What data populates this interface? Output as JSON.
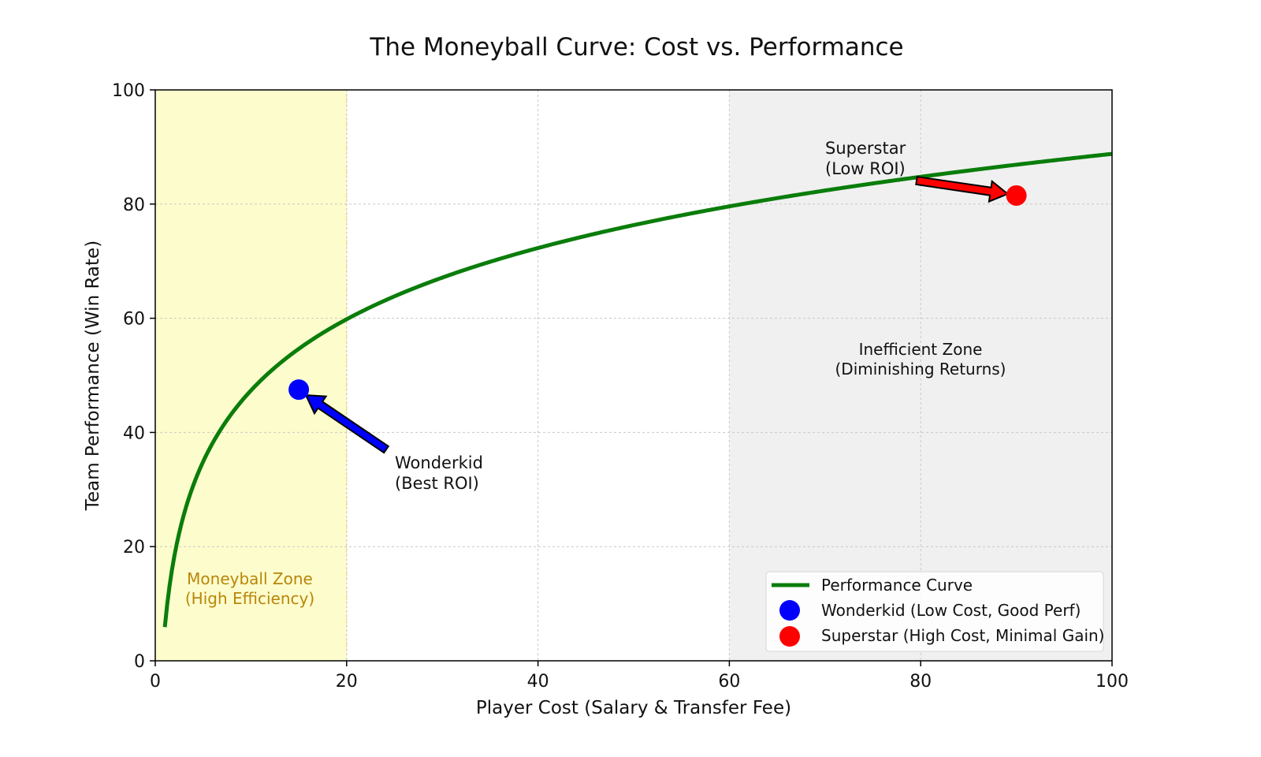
{
  "chart_data": {
    "type": "line",
    "title": "The Moneyball Curve: Cost vs. Performance",
    "xlabel": "Player Cost (Salary & Transfer Fee)",
    "ylabel": "Team Performance (Win Rate)",
    "xlim": [
      0,
      100
    ],
    "ylim": [
      0,
      100
    ],
    "xticks": [
      0,
      20,
      40,
      60,
      80,
      100
    ],
    "yticks": [
      0,
      20,
      40,
      60,
      80,
      100
    ],
    "grid": true,
    "legend_position": "lower-right",
    "colors": {
      "curve": "#0a7d0a",
      "wonderkid": "#0000ff",
      "superstar": "#ff0000",
      "moneyball_zone": "#fdfccc",
      "moneyball_text": "#b8860b",
      "inefficient_zone": "#f0f0f0",
      "grid": "#c8c8c8"
    },
    "series": [
      {
        "name": "Performance Curve",
        "function": "y = 18 * ln(x) + 5.9",
        "x_range": [
          1,
          100
        ],
        "points": [
          [
            1,
            5.9
          ],
          [
            5,
            34.9
          ],
          [
            10,
            47.3
          ],
          [
            15,
            54.6
          ],
          [
            20,
            59.8
          ],
          [
            30,
            67.1
          ],
          [
            40,
            72.3
          ],
          [
            50,
            76.3
          ],
          [
            60,
            79.6
          ],
          [
            70,
            82.4
          ],
          [
            80,
            84.8
          ],
          [
            90,
            86.9
          ],
          [
            100,
            88.8
          ]
        ]
      }
    ],
    "points": [
      {
        "name": "Wonderkid (Low Cost, Good Perf)",
        "x": 15,
        "y": 47.5,
        "color": "#0000ff"
      },
      {
        "name": "Superstar (High Cost, Minimal Gain)",
        "x": 90,
        "y": 81.5,
        "color": "#ff0000"
      }
    ],
    "zones": [
      {
        "label_line1": "Moneyball Zone",
        "label_line2": "(High Efficiency)",
        "x_start": 0,
        "x_end": 20
      },
      {
        "label_line1": "Inefficient Zone",
        "label_line2": "(Diminishing Returns)",
        "x_start": 60,
        "x_end": 100
      }
    ],
    "annotations": [
      {
        "target": "Wonderkid",
        "line1": "Wonderkid",
        "line2": "(Best ROI)",
        "arrow_color": "#0000ff"
      },
      {
        "target": "Superstar",
        "line1": "Superstar",
        "line2": "(Low ROI)",
        "arrow_color": "#ff0000"
      }
    ],
    "legend": [
      {
        "label": "Performance Curve",
        "kind": "line"
      },
      {
        "label": "Wonderkid (Low Cost, Good Perf)",
        "kind": "dot"
      },
      {
        "label": "Superstar (High Cost, Minimal Gain)",
        "kind": "dot"
      }
    ]
  }
}
